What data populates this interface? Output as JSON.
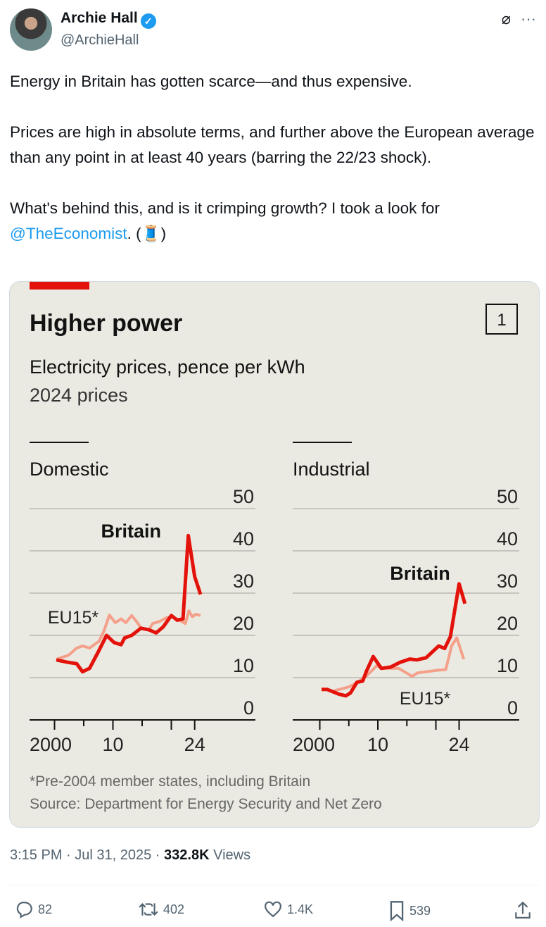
{
  "author": {
    "name": "Archie Hall",
    "handle": "@ArchieHall"
  },
  "tweet": {
    "para1": "Energy in Britain has gotten scarce—and thus expensive.",
    "para2": "Prices are high in absolute terms, and further above the European average than any point in at least 40 years (barring the 22/23 shock).",
    "para3_text": "What's behind this, and is it crimping growth? I took a look for ",
    "mention": "@TheEconomist",
    "para3_end": ". (🧵)"
  },
  "meta": {
    "time": "3:15 PM",
    "date": "Jul 31, 2025",
    "views": "332.8K",
    "views_label": "Views"
  },
  "actions": {
    "replies": "82",
    "reposts": "402",
    "likes": "1.4K",
    "bookmarks": "539"
  },
  "colors": {
    "britain": "#e3120b",
    "eu15": "#f4a08a",
    "card_bg": "#ebeae2",
    "link": "#1d9bf0"
  },
  "chart_data": {
    "type": "line",
    "title": "Higher power",
    "subtitle": "Electricity prices, pence per kWh",
    "subtitle2": "2024 prices",
    "chart_number": "1",
    "footnote": "*Pre-2004 member states, including Britain",
    "source": "Source: Department for Energy Security and Net Zero",
    "ylim": [
      0,
      50
    ],
    "yticks": [
      "0",
      "10",
      "20",
      "30",
      "40",
      "50"
    ],
    "xticks": [
      "2000",
      "10",
      "24"
    ],
    "panels": [
      {
        "name": "Domestic",
        "label_britain": "Britain",
        "label_eu": "EU15*",
        "series": [
          {
            "name": "Britain",
            "x": [
              2000.3,
              2002.4,
              2003.8,
              2004.8,
              2006,
              2007.6,
              2008.9,
              2010.2,
              2011.4,
              2012,
              2013.2,
              2014.8,
              2016.2,
              2017.4,
              2018.6,
              2020,
              2021,
              2022,
              2022.9,
              2024,
              2025
            ],
            "y": [
              14.2,
              13.6,
              13.3,
              11.4,
              12.2,
              16.4,
              20,
              18.3,
              17.8,
              19.4,
              20,
              21.7,
              21.3,
              20.6,
              22,
              24.7,
              23.6,
              23.9,
              43.6,
              33.9,
              29.7
            ]
          },
          {
            "name": "EU15*",
            "x": [
              2000.4,
              2002.4,
              2003.8,
              2004.8,
              2006,
              2007.6,
              2008.4,
              2009.4,
              2010.4,
              2011.4,
              2012.2,
              2013.2,
              2014.2,
              2014.8,
              2016.2,
              2016.8,
              2018,
              2019.2,
              2020,
              2021,
              2022.4,
              2023,
              2023.6,
              2024.2,
              2025
            ],
            "y": [
              14.4,
              15.3,
              17,
              17.5,
              17,
              18.6,
              20.8,
              24.8,
              23,
              23.9,
              23,
              24.7,
              23,
              21.7,
              21.4,
              22.8,
              23.3,
              24.2,
              24.4,
              23.9,
              22.8,
              25.8,
              24.4,
              25,
              24.7
            ]
          }
        ]
      },
      {
        "name": "Industrial",
        "label_britain": "Britain",
        "label_eu": "EU15*",
        "series": [
          {
            "name": "Britain",
            "x": [
              2000.3,
              2001.3,
              2003.3,
              2004.5,
              2005.3,
              2006.4,
              2007.4,
              2008,
              2009.2,
              2010.6,
              2012.2,
              2013.8,
              2015.5,
              2016.7,
              2018.3,
              2020.5,
              2021.5,
              2022.5,
              2024,
              2025
            ],
            "y": [
              7.2,
              7.2,
              6.1,
              5.7,
              6.4,
              8.9,
              9.2,
              11.4,
              15,
              12.2,
              12.5,
              13.6,
              14.4,
              14.2,
              14.7,
              17.5,
              16.9,
              19.7,
              32.2,
              27.5
            ]
          },
          {
            "name": "EU15*",
            "x": [
              2002.5,
              2005,
              2006.5,
              2008.2,
              2009.8,
              2011,
              2012.4,
              2013.6,
              2015.9,
              2016.8,
              2018.3,
              2020,
              2021.7,
              2022.7,
              2023.6,
              2024.8
            ],
            "y": [
              6.9,
              7.8,
              8.9,
              10.6,
              12.8,
              12.2,
              12.2,
              12.2,
              10.3,
              11.1,
              11.4,
              11.7,
              11.9,
              17.5,
              19.4,
              14.4
            ]
          }
        ]
      }
    ]
  }
}
